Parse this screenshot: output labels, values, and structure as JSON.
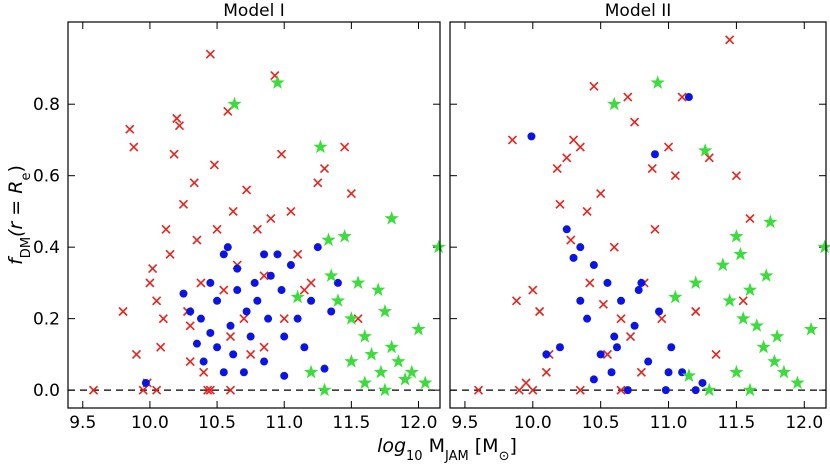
{
  "xlabel_parts": [
    "log",
    "10",
    " M",
    "JAM",
    " [M",
    "⊙",
    "]"
  ],
  "ylabel_parts": [
    "f",
    "DM",
    "(r = R",
    "e",
    ")"
  ],
  "chart_data": [
    {
      "type": "scatter",
      "title": "Model I",
      "xlim": [
        9.39,
        12.16
      ],
      "ylim": [
        -0.05,
        1.03
      ],
      "xticks": [
        9.5,
        {
          "value": 10,
          "label": "10.0"
        },
        10.5,
        {
          "value": 11,
          "label": "11.0"
        },
        11.5,
        {
          "value": 12,
          "label": "12.0"
        }
      ],
      "yticks": [
        {
          "value": 0,
          "label": "0.0"
        },
        0.2,
        0.4,
        0.6,
        0.8
      ],
      "ytick_labels": true,
      "hline": 0,
      "series": [
        {
          "marker": "x",
          "color": "#e8231d",
          "x": [
            9.58,
            9.8,
            9.85,
            9.88,
            9.9,
            9.95,
            9.98,
            10.0,
            10.02,
            10.05,
            10.08,
            10.1,
            10.12,
            10.15,
            10.18,
            10.2,
            10.22,
            10.25,
            10.28,
            10.3,
            10.33,
            10.35,
            10.38,
            10.4,
            10.43,
            10.45,
            10.48,
            10.5,
            10.55,
            10.58,
            10.6,
            10.62,
            10.65,
            10.7,
            10.72,
            10.75,
            10.8,
            10.85,
            10.9,
            10.93,
            10.98,
            11.0,
            11.05,
            11.1,
            11.15,
            11.2,
            11.25,
            11.3,
            11.45,
            11.5,
            11.55,
            10.05,
            10.45,
            10.6,
            10.85,
            10.3
          ],
          "values": [
            0,
            0.22,
            0.73,
            0.68,
            0.1,
            0,
            0.02,
            0.3,
            0.34,
            0.25,
            0.12,
            0.2,
            0.45,
            0.38,
            0.66,
            0.76,
            0.74,
            0.52,
            0.22,
            0.08,
            0.58,
            0.42,
            0.3,
            0.05,
            0,
            0.94,
            0.63,
            0.45,
            0.28,
            0.78,
            0.15,
            0.5,
            0.35,
            0.2,
            0.56,
            0.1,
            0.45,
            0.32,
            0.48,
            0.88,
            0.66,
            0.2,
            0.5,
            0.38,
            0.28,
            0.3,
            0.58,
            0.62,
            0.68,
            0.55,
            0.2,
            0,
            0,
            0,
            0.12,
            0.18
          ]
        },
        {
          "marker": "circle",
          "color": "#0a14e6",
          "x": [
            9.97,
            10.25,
            10.3,
            10.35,
            10.38,
            10.4,
            10.45,
            10.5,
            10.55,
            10.58,
            10.6,
            10.62,
            10.65,
            10.7,
            10.72,
            10.75,
            10.78,
            10.8,
            10.85,
            10.88,
            10.9,
            10.95,
            10.98,
            11.0,
            11.05,
            11.1,
            11.15,
            11.2,
            11.25,
            11.3,
            11.35,
            11.4,
            10.45,
            10.55,
            10.65,
            10.85,
            10.5,
            11.0
          ],
          "values": [
            0.02,
            0.27,
            0.22,
            0.13,
            0.2,
            0.08,
            0.3,
            0.25,
            0.38,
            0.4,
            0.18,
            0.1,
            0.28,
            0.05,
            0.22,
            0.15,
            0.3,
            0.25,
            0.08,
            0.2,
            0.32,
            0.38,
            0.28,
            0.15,
            0.35,
            0.2,
            0.12,
            0.25,
            0.4,
            0.06,
            0.22,
            0.3,
            0.16,
            0.05,
            0.34,
            0.38,
            0.12,
            0.04
          ]
        },
        {
          "marker": "star",
          "color": "#3ddc3d",
          "x": [
            10.63,
            10.95,
            11.27,
            11.33,
            11.45,
            11.8,
            12.15,
            11.2,
            11.35,
            11.4,
            11.5,
            11.55,
            11.6,
            11.65,
            11.7,
            11.72,
            11.75,
            11.8,
            11.85,
            11.9,
            11.95,
            12.0,
            12.05,
            11.6,
            11.5,
            11.3,
            11.1,
            11.75
          ],
          "values": [
            0.8,
            0.86,
            0.68,
            0.42,
            0.43,
            0.48,
            0.4,
            0.05,
            0.32,
            0.25,
            0.2,
            0.3,
            0.15,
            0.1,
            0.28,
            0.05,
            0.22,
            0.12,
            0.08,
            0.03,
            0.05,
            0.17,
            0.02,
            0.02,
            0.08,
            0,
            0.26,
            0
          ]
        }
      ]
    },
    {
      "type": "scatter",
      "title": "Model II",
      "xlim": [
        9.39,
        12.16
      ],
      "ylim": [
        -0.05,
        1.03
      ],
      "xticks": [
        9.5,
        {
          "value": 10,
          "label": "10.0"
        },
        10.5,
        {
          "value": 11,
          "label": "11.0"
        },
        11.5,
        {
          "value": 12,
          "label": "12.0"
        }
      ],
      "yticks": [
        0,
        0.2,
        0.4,
        0.6,
        0.8
      ],
      "ytick_labels": false,
      "hline": 0,
      "series": [
        {
          "marker": "x",
          "color": "#e8231d",
          "x": [
            9.6,
            9.85,
            9.88,
            9.9,
            9.95,
            10.0,
            10.05,
            10.1,
            10.12,
            10.18,
            10.2,
            10.25,
            10.28,
            10.3,
            10.35,
            10.4,
            10.42,
            10.45,
            10.5,
            10.52,
            10.55,
            10.6,
            10.65,
            10.7,
            10.72,
            10.75,
            10.8,
            10.82,
            10.88,
            10.9,
            10.95,
            11.0,
            11.05,
            11.1,
            11.2,
            11.3,
            11.45,
            11.5,
            11.55,
            11.6,
            11.35,
            10.35,
            10.65,
            10.0
          ],
          "values": [
            0,
            0.7,
            0.25,
            0,
            0.02,
            0.28,
            0.22,
            0.05,
            0.1,
            0.62,
            0.52,
            0.65,
            0.42,
            0.7,
            0.68,
            0.5,
            0.3,
            0.85,
            0.55,
            0.24,
            0.1,
            0.4,
            0.2,
            0.82,
            0.15,
            0.75,
            0.05,
            0.3,
            0.62,
            0.45,
            0.2,
            0.68,
            0.6,
            0.82,
            0.22,
            0.65,
            0.98,
            0.6,
            0.25,
            0.48,
            0.1,
            0,
            0,
            0
          ]
        },
        {
          "marker": "circle",
          "color": "#0a14e6",
          "x": [
            9.99,
            10.25,
            10.3,
            10.35,
            10.4,
            10.45,
            10.5,
            10.55,
            10.58,
            10.6,
            10.65,
            10.7,
            10.75,
            10.8,
            10.85,
            10.9,
            10.93,
            10.98,
            11.02,
            11.1,
            11.15,
            11.2,
            10.1,
            10.2,
            10.45,
            10.62,
            10.78,
            11.0,
            11.25,
            10.35
          ],
          "values": [
            0.71,
            0.45,
            0.37,
            0.4,
            0.2,
            0.35,
            0.1,
            0.3,
            0.05,
            0.15,
            0.25,
            0,
            0.18,
            0.3,
            0.08,
            0.66,
            0.22,
            0,
            0.12,
            0.05,
            0.82,
            0,
            0.1,
            0.12,
            0.03,
            0.12,
            0.28,
            0.05,
            0.02,
            0.25
          ]
        },
        {
          "marker": "star",
          "color": "#3ddc3d",
          "x": [
            10.6,
            10.92,
            11.27,
            11.5,
            11.53,
            11.75,
            12.15,
            11.05,
            11.2,
            11.4,
            11.45,
            11.55,
            11.6,
            11.65,
            11.7,
            11.72,
            11.78,
            11.8,
            11.85,
            11.95,
            12.05,
            11.3,
            11.5,
            11.6,
            11.15
          ],
          "values": [
            0.8,
            0.86,
            0.67,
            0.43,
            0.38,
            0.47,
            0.4,
            0.26,
            0.3,
            0.35,
            0.25,
            0.2,
            0.28,
            0.18,
            0.12,
            0.32,
            0.08,
            0.15,
            0.05,
            0.02,
            0.17,
            0,
            0.05,
            0,
            0.04
          ]
        }
      ]
    }
  ]
}
